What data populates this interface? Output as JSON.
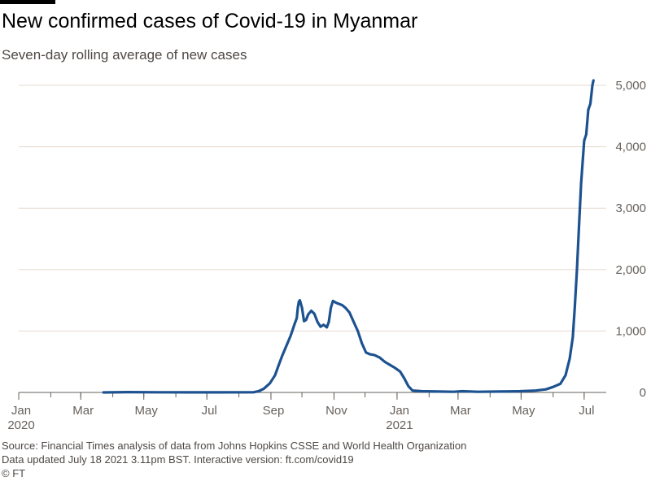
{
  "header": {
    "title": "New confirmed cases of Covid-19 in Myanmar",
    "subtitle": "Seven-day rolling average of new cases"
  },
  "footer": {
    "source": "Source: Financial Times analysis of data from Johns Hopkins CSSE and World Health Organization",
    "updated": "Data updated July 18 2021 3.11pm BST. Interactive version: ft.com/covid19",
    "copyright": "© FT"
  },
  "colors": {
    "line": "#1d5290",
    "grid": "#e6d9ce",
    "axis": "#66605c",
    "text": "#66605c"
  },
  "chart_data": {
    "type": "line",
    "title": "New confirmed cases of Covid-19 in Myanmar",
    "subtitle": "Seven-day rolling average of new cases",
    "xlabel": "",
    "ylabel": "",
    "xlim": [
      "2020-01-01",
      "2021-07-20"
    ],
    "ylim": [
      0,
      5000
    ],
    "grid": true,
    "y_ticks": [
      0,
      1000,
      2000,
      3000,
      4000,
      5000
    ],
    "y_tick_labels": [
      "0",
      "1,000",
      "2,000",
      "3,000",
      "4,000",
      "5,000"
    ],
    "x_ticks": [
      {
        "date": "2020-01-01",
        "label": "Jan",
        "year": "2020"
      },
      {
        "date": "2020-03-01",
        "label": "Mar",
        "year": ""
      },
      {
        "date": "2020-05-01",
        "label": "May",
        "year": ""
      },
      {
        "date": "2020-07-01",
        "label": "Jul",
        "year": ""
      },
      {
        "date": "2020-09-01",
        "label": "Sep",
        "year": ""
      },
      {
        "date": "2020-11-01",
        "label": "Nov",
        "year": ""
      },
      {
        "date": "2021-01-01",
        "label": "Jan",
        "year": "2021"
      },
      {
        "date": "2021-03-01",
        "label": "Mar",
        "year": ""
      },
      {
        "date": "2021-05-01",
        "label": "May",
        "year": ""
      },
      {
        "date": "2021-07-01",
        "label": "Jul",
        "year": ""
      }
    ],
    "series": [
      {
        "color": "#1d5290",
        "points": [
          [
            "2020-03-23",
            0
          ],
          [
            "2020-04-15",
            5
          ],
          [
            "2020-05-15",
            2
          ],
          [
            "2020-06-15",
            1
          ],
          [
            "2020-07-15",
            1
          ],
          [
            "2020-08-15",
            2
          ],
          [
            "2020-08-20",
            20
          ],
          [
            "2020-08-25",
            60
          ],
          [
            "2020-08-31",
            150
          ],
          [
            "2020-09-05",
            280
          ],
          [
            "2020-09-08",
            420
          ],
          [
            "2020-09-12",
            600
          ],
          [
            "2020-09-16",
            760
          ],
          [
            "2020-09-20",
            920
          ],
          [
            "2020-09-24",
            1120
          ],
          [
            "2020-09-26",
            1210
          ],
          [
            "2020-09-27",
            1380
          ],
          [
            "2020-09-28",
            1480
          ],
          [
            "2020-09-29",
            1500
          ],
          [
            "2020-10-01",
            1380
          ],
          [
            "2020-10-03",
            1160
          ],
          [
            "2020-10-05",
            1180
          ],
          [
            "2020-10-07",
            1270
          ],
          [
            "2020-10-10",
            1330
          ],
          [
            "2020-10-13",
            1280
          ],
          [
            "2020-10-16",
            1150
          ],
          [
            "2020-10-19",
            1070
          ],
          [
            "2020-10-22",
            1100
          ],
          [
            "2020-10-25",
            1060
          ],
          [
            "2020-10-27",
            1150
          ],
          [
            "2020-10-29",
            1380
          ],
          [
            "2020-10-31",
            1490
          ],
          [
            "2020-11-03",
            1460
          ],
          [
            "2020-11-06",
            1440
          ],
          [
            "2020-11-09",
            1420
          ],
          [
            "2020-11-12",
            1380
          ],
          [
            "2020-11-16",
            1300
          ],
          [
            "2020-11-20",
            1150
          ],
          [
            "2020-11-24",
            1000
          ],
          [
            "2020-11-28",
            800
          ],
          [
            "2020-12-02",
            650
          ],
          [
            "2020-12-06",
            620
          ],
          [
            "2020-12-10",
            610
          ],
          [
            "2020-12-15",
            570
          ],
          [
            "2020-12-20",
            500
          ],
          [
            "2020-12-25",
            450
          ],
          [
            "2020-12-30",
            400
          ],
          [
            "2021-01-04",
            340
          ],
          [
            "2021-01-08",
            230
          ],
          [
            "2021-01-12",
            100
          ],
          [
            "2021-01-16",
            30
          ],
          [
            "2021-01-25",
            20
          ],
          [
            "2021-02-10",
            15
          ],
          [
            "2021-02-25",
            10
          ],
          [
            "2021-03-05",
            20
          ],
          [
            "2021-03-20",
            10
          ],
          [
            "2021-04-10",
            15
          ],
          [
            "2021-04-30",
            20
          ],
          [
            "2021-05-15",
            30
          ],
          [
            "2021-05-25",
            50
          ],
          [
            "2021-06-01",
            90
          ],
          [
            "2021-06-08",
            140
          ],
          [
            "2021-06-13",
            280
          ],
          [
            "2021-06-17",
            550
          ],
          [
            "2021-06-20",
            900
          ],
          [
            "2021-06-22",
            1400
          ],
          [
            "2021-06-24",
            2000
          ],
          [
            "2021-06-26",
            2700
          ],
          [
            "2021-06-28",
            3400
          ],
          [
            "2021-07-01",
            4100
          ],
          [
            "2021-07-03",
            4200
          ],
          [
            "2021-07-05",
            4600
          ],
          [
            "2021-07-07",
            4700
          ],
          [
            "2021-07-09",
            5000
          ],
          [
            "2021-07-10",
            5080
          ]
        ]
      }
    ]
  }
}
